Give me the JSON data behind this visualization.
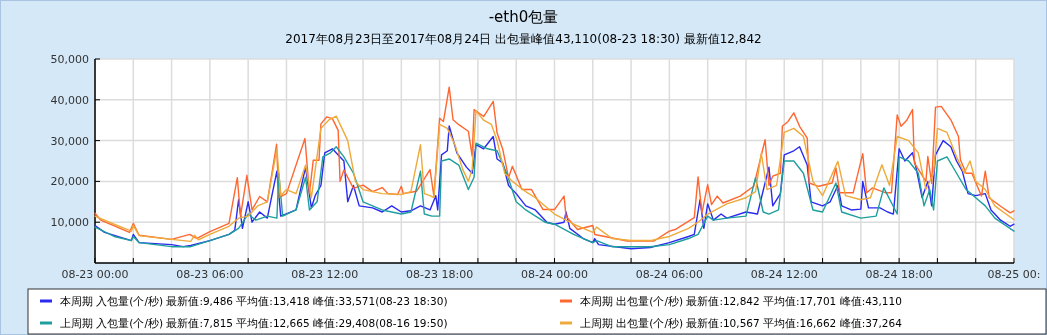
{
  "chart_data": {
    "type": "line",
    "title": "-eth0包量",
    "subtitle": "2017年08月23日至2017年08月24日 出包量峰值43,110(08-23 18:30) 最新值12,842",
    "xlim": [
      "2017-08-23T00:00",
      "2017-08-25T00:00"
    ],
    "xticks": [
      {
        "value": "2017-08-23T00:00",
        "label": "08-23 00:00"
      },
      {
        "value": "2017-08-23T02:00",
        "label": null
      },
      {
        "value": "2017-08-23T04:00",
        "label": null
      },
      {
        "value": "2017-08-23T06:00",
        "label": "08-23 06:00"
      },
      {
        "value": "2017-08-23T08:00",
        "label": null
      },
      {
        "value": "2017-08-23T10:00",
        "label": null
      },
      {
        "value": "2017-08-23T12:00",
        "label": "08-23 12:00"
      },
      {
        "value": "2017-08-23T14:00",
        "label": null
      },
      {
        "value": "2017-08-23T16:00",
        "label": null
      },
      {
        "value": "2017-08-23T18:00",
        "label": "08-23 18:00"
      },
      {
        "value": "2017-08-23T20:00",
        "label": null
      },
      {
        "value": "2017-08-23T22:00",
        "label": null
      },
      {
        "value": "2017-08-24T00:00",
        "label": "08-24 00:00"
      },
      {
        "value": "2017-08-24T02:00",
        "label": null
      },
      {
        "value": "2017-08-24T04:00",
        "label": null
      },
      {
        "value": "2017-08-24T06:00",
        "label": "08-24 06:00"
      },
      {
        "value": "2017-08-24T08:00",
        "label": null
      },
      {
        "value": "2017-08-24T10:00",
        "label": null
      },
      {
        "value": "2017-08-24T12:00",
        "label": "08-24 12:00"
      },
      {
        "value": "2017-08-24T14:00",
        "label": null
      },
      {
        "value": "2017-08-24T16:00",
        "label": null
      },
      {
        "value": "2017-08-24T18:00",
        "label": "08-24 18:00"
      },
      {
        "value": "2017-08-24T20:00",
        "label": null
      },
      {
        "value": "2017-08-24T22:00",
        "label": null
      },
      {
        "value": "2017-08-25T00:00",
        "label": "08-25 00:"
      }
    ],
    "ylim": [
      0,
      50000
    ],
    "yticks": [
      {
        "value": 10000,
        "label": "10,000"
      },
      {
        "value": 20000,
        "label": "20,000"
      },
      {
        "value": 30000,
        "label": "30,000"
      },
      {
        "value": 40000,
        "label": "40,000"
      },
      {
        "value": 50000,
        "label": "50,000"
      }
    ],
    "grid": true,
    "legend": "bottom",
    "series": [
      {
        "name": "本周期 入包量(个/秒) 最新值:9,486  平均值:13,418  峰值:33,571(08-23 18:30)",
        "color": "#2a2af0",
        "x": [
          "2017-08-23T00:00",
          "2017-08-23T00:30",
          "2017-08-23T01:54",
          "2017-08-23T02:00",
          "2017-08-23T02:18",
          "2017-08-23T04:00",
          "2017-08-23T04:36",
          "2017-08-23T05:00",
          "2017-08-23T06:00",
          "2017-08-23T07:00",
          "2017-08-23T07:18",
          "2017-08-23T07:30",
          "2017-08-23T07:42",
          "2017-08-23T08:00",
          "2017-08-23T08:12",
          "2017-08-23T08:36",
          "2017-08-23T09:00",
          "2017-08-23T09:30",
          "2017-08-23T09:42",
          "2017-08-23T10:30",
          "2017-08-23T11:00",
          "2017-08-23T11:18",
          "2017-08-23T11:30",
          "2017-08-23T11:48",
          "2017-08-23T12:00",
          "2017-08-23T12:24",
          "2017-08-23T12:48",
          "2017-08-23T13:00",
          "2017-08-23T13:12",
          "2017-08-23T13:30",
          "2017-08-23T13:48",
          "2017-08-23T14:30",
          "2017-08-23T15:00",
          "2017-08-23T15:30",
          "2017-08-23T16:00",
          "2017-08-23T16:30",
          "2017-08-23T17:00",
          "2017-08-23T17:30",
          "2017-08-23T17:48",
          "2017-08-23T17:54",
          "2017-08-23T18:06",
          "2017-08-23T18:24",
          "2017-08-23T18:30",
          "2017-08-23T18:54",
          "2017-08-23T19:24",
          "2017-08-23T19:42",
          "2017-08-23T19:54",
          "2017-08-23T20:18",
          "2017-08-23T20:48",
          "2017-08-23T21:00",
          "2017-08-23T21:18",
          "2017-08-23T21:36",
          "2017-08-23T22:00",
          "2017-08-23T22:30",
          "2017-08-23T23:00",
          "2017-08-23T23:36",
          "2017-08-24T00:00",
          "2017-08-24T00:30",
          "2017-08-24T00:36",
          "2017-08-24T00:48",
          "2017-08-24T01:30",
          "2017-08-24T02:00",
          "2017-08-24T02:06",
          "2017-08-24T02:18",
          "2017-08-24T04:00",
          "2017-08-24T05:00",
          "2017-08-24T06:00",
          "2017-08-24T07:00",
          "2017-08-24T07:18",
          "2017-08-24T07:36",
          "2017-08-24T07:48",
          "2017-08-24T08:00",
          "2017-08-24T08:18",
          "2017-08-24T08:42",
          "2017-08-24T09:00",
          "2017-08-24T10:00",
          "2017-08-24T10:36",
          "2017-08-24T11:12",
          "2017-08-24T11:24",
          "2017-08-24T11:48",
          "2017-08-24T12:00",
          "2017-08-24T12:30",
          "2017-08-24T12:48",
          "2017-08-24T13:12",
          "2017-08-24T13:24",
          "2017-08-24T14:00",
          "2017-08-24T14:24",
          "2017-08-24T14:48",
          "2017-08-24T15:00",
          "2017-08-24T15:30",
          "2017-08-24T16:00",
          "2017-08-24T16:06",
          "2017-08-24T16:24",
          "2017-08-24T17:00",
          "2017-08-24T17:24",
          "2017-08-24T17:42",
          "2017-08-24T18:00",
          "2017-08-24T18:18",
          "2017-08-24T18:42",
          "2017-08-24T18:54",
          "2017-08-24T19:12",
          "2017-08-24T19:30",
          "2017-08-24T19:42",
          "2017-08-24T19:54",
          "2017-08-24T20:18",
          "2017-08-24T20:42",
          "2017-08-24T21:00",
          "2017-08-24T21:18",
          "2017-08-24T21:36",
          "2017-08-24T22:00",
          "2017-08-24T22:30",
          "2017-08-24T22:48",
          "2017-08-24T23:18",
          "2017-08-24T23:48",
          "2017-08-25T00:00"
        ],
        "values": [
          9200,
          7500,
          5500,
          7000,
          5000,
          4500,
          4000,
          4300,
          5500,
          7000,
          8000,
          15500,
          8500,
          15000,
          10000,
          12500,
          11000,
          22500,
          11500,
          13000,
          23500,
          13500,
          16500,
          19000,
          27000,
          28000,
          26000,
          25000,
          15000,
          19000,
          14000,
          13500,
          12500,
          14000,
          12500,
          12800,
          14000,
          13000,
          16500,
          13000,
          26500,
          27500,
          33600,
          27000,
          23500,
          22000,
          29000,
          28000,
          31000,
          25500,
          24500,
          19000,
          17000,
          14000,
          13000,
          10000,
          9500,
          10000,
          12500,
          8500,
          6000,
          5000,
          6000,
          4500,
          3500,
          3800,
          5000,
          6500,
          7000,
          15500,
          8500,
          14500,
          10500,
          12000,
          11000,
          12500,
          12000,
          23500,
          14000,
          17000,
          26500,
          27500,
          28500,
          24000,
          15000,
          14000,
          15000,
          19000,
          14000,
          13000,
          13200,
          20000,
          13500,
          13500,
          12500,
          12000,
          28000,
          25000,
          27000,
          23000,
          16000,
          20000,
          14000,
          26500,
          30000,
          28500,
          25000,
          22500,
          17000,
          16500,
          17000,
          13000,
          10500,
          9000,
          9500
        ]
      },
      {
        "name": "本周期 出包量(个/秒) 最新值:12,842  平均值:17,701  峰值:43,110",
        "color": "#ff6630",
        "x": [
          "2017-08-23T00:00",
          "2017-08-23T00:18",
          "2017-08-23T01:48",
          "2017-08-23T02:00",
          "2017-08-23T02:18",
          "2017-08-23T04:00",
          "2017-08-23T04:57",
          "2017-08-23T05:18",
          "2017-08-23T06:00",
          "2017-08-23T07:00",
          "2017-08-23T07:26",
          "2017-08-23T07:36",
          "2017-08-23T07:56",
          "2017-08-23T08:12",
          "2017-08-23T08:36",
          "2017-08-23T09:00",
          "2017-08-23T09:29",
          "2017-08-23T09:36",
          "2017-08-23T10:00",
          "2017-08-23T10:58",
          "2017-08-23T11:12",
          "2017-08-23T11:24",
          "2017-08-23T11:42",
          "2017-08-23T11:48",
          "2017-08-23T12:06",
          "2017-08-23T12:24",
          "2017-08-23T12:42",
          "2017-08-23T12:48",
          "2017-08-23T13:00",
          "2017-08-23T13:30",
          "2017-08-23T14:00",
          "2017-08-23T14:30",
          "2017-08-23T15:00",
          "2017-08-23T15:18",
          "2017-08-23T15:48",
          "2017-08-23T16:00",
          "2017-08-23T16:06",
          "2017-08-23T16:48",
          "2017-08-23T17:30",
          "2017-08-23T17:42",
          "2017-08-23T18:00",
          "2017-08-23T18:12",
          "2017-08-23T18:30",
          "2017-08-23T18:42",
          "2017-08-23T19:00",
          "2017-08-23T19:30",
          "2017-08-23T19:42",
          "2017-08-23T19:48",
          "2017-08-23T20:18",
          "2017-08-23T20:48",
          "2017-08-23T21:00",
          "2017-08-23T21:18",
          "2017-08-23T21:36",
          "2017-08-23T21:48",
          "2017-08-23T22:18",
          "2017-08-23T22:48",
          "2017-08-23T23:24",
          "2017-08-24T00:00",
          "2017-08-24T00:30",
          "2017-08-24T00:36",
          "2017-08-24T01:12",
          "2017-08-24T02:00",
          "2017-08-24T02:06",
          "2017-08-24T03:48",
          "2017-08-24T05:12",
          "2017-08-24T06:00",
          "2017-08-24T06:18",
          "2017-08-24T07:18",
          "2017-08-24T07:30",
          "2017-08-24T07:42",
          "2017-08-24T08:00",
          "2017-08-24T08:12",
          "2017-08-24T08:30",
          "2017-08-24T08:48",
          "2017-08-24T09:42",
          "2017-08-24T10:24",
          "2017-08-24T11:00",
          "2017-08-24T11:12",
          "2017-08-24T11:24",
          "2017-08-24T11:48",
          "2017-08-24T11:54",
          "2017-08-24T12:12",
          "2017-08-24T12:30",
          "2017-08-24T12:48",
          "2017-08-24T13:12",
          "2017-08-24T13:18",
          "2017-08-24T13:48",
          "2017-08-24T14:30",
          "2017-08-24T14:42",
          "2017-08-24T14:54",
          "2017-08-24T15:36",
          "2017-08-24T16:06",
          "2017-08-24T16:18",
          "2017-08-24T16:36",
          "2017-08-24T17:18",
          "2017-08-24T17:36",
          "2017-08-24T17:54",
          "2017-08-24T18:06",
          "2017-08-24T18:24",
          "2017-08-24T18:42",
          "2017-08-24T18:48",
          "2017-08-24T19:24",
          "2017-08-24T19:30",
          "2017-08-24T19:42",
          "2017-08-24T19:54",
          "2017-08-24T20:12",
          "2017-08-24T20:42",
          "2017-08-24T21:06",
          "2017-08-24T21:12",
          "2017-08-24T21:30",
          "2017-08-24T21:48",
          "2017-08-24T22:18",
          "2017-08-24T22:30",
          "2017-08-24T22:42",
          "2017-08-24T23:18",
          "2017-08-24T23:48",
          "2017-08-25T00:00"
        ],
        "values": [
          12200,
          10500,
          7500,
          9700,
          6800,
          5800,
          7000,
          6000,
          7700,
          9700,
          20900,
          11500,
          21500,
          13000,
          16300,
          15000,
          29100,
          16000,
          17000,
          30500,
          17000,
          25200,
          25200,
          34100,
          35800,
          35400,
          32500,
          20000,
          22800,
          18300,
          19100,
          17500,
          18500,
          17000,
          16800,
          18800,
          17000,
          17600,
          22900,
          16400,
          35500,
          34700,
          43100,
          35100,
          33900,
          32300,
          26200,
          37600,
          35900,
          39600,
          31900,
          27800,
          20900,
          23700,
          18000,
          18000,
          13100,
          13100,
          16400,
          11500,
          8200,
          9200,
          7000,
          5400,
          5400,
          7800,
          8200,
          11100,
          21100,
          12300,
          19200,
          14300,
          16400,
          14700,
          16400,
          18800,
          30200,
          19000,
          21300,
          22000,
          33500,
          34700,
          36800,
          33500,
          30600,
          19600,
          18800,
          19600,
          23300,
          17200,
          17200,
          26800,
          17200,
          18400,
          17200,
          17200,
          36300,
          33500,
          35000,
          37600,
          24500,
          20000,
          26100,
          19500,
          38200,
          38400,
          35100,
          31000,
          25300,
          22000,
          22000,
          16400,
          22500,
          16000,
          13900,
          12300,
          12800
        ]
      },
      {
        "name": "上周期 入包量(个/秒) 最新值:7,815  平均值:12,665  峰值:29,408(08-16 19:50)",
        "color": "#1f9e9e",
        "x": [
          "2017-08-23T00:00",
          "2017-08-23T01:00",
          "2017-08-23T01:54",
          "2017-08-23T02:00",
          "2017-08-23T02:18",
          "2017-08-23T04:00",
          "2017-08-23T05:00",
          "2017-08-23T06:00",
          "2017-08-23T07:00",
          "2017-08-23T07:30",
          "2017-08-23T08:00",
          "2017-08-23T08:24",
          "2017-08-23T09:00",
          "2017-08-23T09:30",
          "2017-08-23T09:36",
          "2017-08-23T09:48",
          "2017-08-23T10:30",
          "2017-08-23T11:00",
          "2017-08-23T11:12",
          "2017-08-23T11:36",
          "2017-08-23T11:54",
          "2017-08-23T12:18",
          "2017-08-23T12:36",
          "2017-08-23T13:00",
          "2017-08-23T13:30",
          "2017-08-23T14:00",
          "2017-08-23T15:00",
          "2017-08-23T16:00",
          "2017-08-23T16:30",
          "2017-08-23T17:00",
          "2017-08-23T17:12",
          "2017-08-23T17:36",
          "2017-08-23T18:00",
          "2017-08-23T18:06",
          "2017-08-23T18:30",
          "2017-08-23T19:00",
          "2017-08-23T19:30",
          "2017-08-23T19:48",
          "2017-08-23T19:54",
          "2017-08-23T20:30",
          "2017-08-23T21:00",
          "2017-08-23T21:30",
          "2017-08-23T22:00",
          "2017-08-23T22:30",
          "2017-08-23T23:30",
          "2017-08-24T00:00",
          "2017-08-24T01:00",
          "2017-08-24T02:00",
          "2017-08-24T02:12",
          "2017-08-24T03:00",
          "2017-08-24T04:00",
          "2017-08-24T05:00",
          "2017-08-24T06:00",
          "2017-08-24T07:00",
          "2017-08-24T07:30",
          "2017-08-24T08:00",
          "2017-08-24T08:18",
          "2017-08-24T09:00",
          "2017-08-24T10:00",
          "2017-08-24T10:30",
          "2017-08-24T10:54",
          "2017-08-24T11:12",
          "2017-08-24T11:42",
          "2017-08-24T12:00",
          "2017-08-24T12:30",
          "2017-08-24T13:00",
          "2017-08-24T13:30",
          "2017-08-24T14:00",
          "2017-08-24T14:42",
          "2017-08-24T15:00",
          "2017-08-24T16:00",
          "2017-08-24T16:48",
          "2017-08-24T17:12",
          "2017-08-24T17:54",
          "2017-08-24T18:00",
          "2017-08-24T18:30",
          "2017-08-24T19:00",
          "2017-08-24T19:18",
          "2017-08-24T19:36",
          "2017-08-24T19:48",
          "2017-08-24T20:00",
          "2017-08-24T20:30",
          "2017-08-24T21:00",
          "2017-08-24T21:30",
          "2017-08-24T22:00",
          "2017-08-24T22:30",
          "2017-08-24T23:00",
          "2017-08-25T00:00"
        ],
        "values": [
          8800,
          6500,
          5500,
          6500,
          5000,
          4000,
          4000,
          5500,
          7000,
          8500,
          12000,
          10500,
          11500,
          11000,
          22000,
          11500,
          13000,
          21000,
          13000,
          15000,
          26000,
          27000,
          28500,
          26000,
          22000,
          15000,
          13000,
          12000,
          12500,
          22500,
          12000,
          11500,
          11500,
          25000,
          25500,
          24000,
          18000,
          21000,
          29400,
          28000,
          27500,
          22000,
          15000,
          13000,
          10000,
          9500,
          7000,
          5000,
          5500,
          4000,
          4000,
          4000,
          4500,
          6000,
          7000,
          11500,
          10500,
          11000,
          11500,
          20900,
          12500,
          12000,
          13000,
          25000,
          25000,
          22000,
          13000,
          12500,
          19600,
          12500,
          11000,
          11500,
          18400,
          12000,
          26000,
          25000,
          22000,
          14000,
          18000,
          13000,
          25000,
          26000,
          22000,
          18000,
          16000,
          14000,
          11000,
          7800
        ]
      },
      {
        "name": "上周期 出包量(个/秒) 最新值:10,567  平均值:16,662  峰值:37,264",
        "color": "#eeaa3a",
        "x": [
          "2017-08-23T00:00",
          "2017-08-23T01:00",
          "2017-08-23T01:54",
          "2017-08-23T02:00",
          "2017-08-23T02:18",
          "2017-08-23T04:00",
          "2017-08-23T05:00",
          "2017-08-23T05:12",
          "2017-08-23T05:24",
          "2017-08-23T06:00",
          "2017-08-23T07:00",
          "2017-08-23T07:30",
          "2017-08-23T08:00",
          "2017-08-23T08:30",
          "2017-08-23T09:00",
          "2017-08-23T09:30",
          "2017-08-23T09:42",
          "2017-08-23T10:00",
          "2017-08-23T10:30",
          "2017-08-23T11:00",
          "2017-08-23T11:18",
          "2017-08-23T11:48",
          "2017-08-23T12:12",
          "2017-08-23T12:36",
          "2017-08-23T13:12",
          "2017-08-23T13:36",
          "2017-08-23T14:00",
          "2017-08-23T15:00",
          "2017-08-23T16:00",
          "2017-08-23T16:30",
          "2017-08-23T17:00",
          "2017-08-23T17:12",
          "2017-08-23T17:30",
          "2017-08-23T17:42",
          "2017-08-23T18:00",
          "2017-08-23T18:24",
          "2017-08-23T18:48",
          "2017-08-23T19:12",
          "2017-08-23T19:30",
          "2017-08-23T19:42",
          "2017-08-23T19:54",
          "2017-08-23T20:18",
          "2017-08-23T20:42",
          "2017-08-23T21:00",
          "2017-08-23T21:24",
          "2017-08-23T21:48",
          "2017-08-23T22:30",
          "2017-08-23T23:00",
          "2017-08-24T00:00",
          "2017-08-24T01:00",
          "2017-08-24T02:00",
          "2017-08-24T02:12",
          "2017-08-24T03:00",
          "2017-08-24T04:00",
          "2017-08-24T05:00",
          "2017-08-24T06:00",
          "2017-08-24T07:00",
          "2017-08-24T07:30",
          "2017-08-24T08:00",
          "2017-08-24T09:00",
          "2017-08-24T10:00",
          "2017-08-24T10:30",
          "2017-08-24T10:48",
          "2017-08-24T11:06",
          "2017-08-24T11:36",
          "2017-08-24T12:00",
          "2017-08-24T12:30",
          "2017-08-24T13:00",
          "2017-08-24T13:30",
          "2017-08-24T14:00",
          "2017-08-24T14:48",
          "2017-08-24T15:12",
          "2017-08-24T16:00",
          "2017-08-24T16:30",
          "2017-08-24T17:06",
          "2017-08-24T17:30",
          "2017-08-24T17:54",
          "2017-08-24T18:30",
          "2017-08-24T19:00",
          "2017-08-24T19:24",
          "2017-08-24T19:48",
          "2017-08-24T20:00",
          "2017-08-24T20:30",
          "2017-08-24T21:00",
          "2017-08-24T21:24",
          "2017-08-24T21:42",
          "2017-08-24T22:00",
          "2017-08-24T22:30",
          "2017-08-24T23:00",
          "2017-08-25T00:00"
        ],
        "values": [
          11500,
          9500,
          7800,
          9200,
          6700,
          5800,
          5300,
          6800,
          5700,
          7000,
          9000,
          11000,
          11500,
          14000,
          15000,
          28000,
          16500,
          18000,
          17000,
          24000,
          16000,
          33000,
          35000,
          36000,
          30000,
          20000,
          18000,
          17000,
          16800,
          17500,
          29000,
          17000,
          16500,
          16000,
          34000,
          33000,
          29000,
          23000,
          20000,
          23000,
          37300,
          35000,
          34000,
          30000,
          22000,
          20000,
          17500,
          16000,
          12000,
          9500,
          7500,
          8800,
          6000,
          5500,
          5500,
          6500,
          8500,
          10000,
          12000,
          14500,
          16000,
          17500,
          26900,
          18000,
          19000,
          32000,
          33000,
          31000,
          20000,
          16500,
          24900,
          16500,
          15500,
          16000,
          24100,
          19000,
          31000,
          30000,
          27000,
          18000,
          22000,
          33000,
          32000,
          26000,
          22000,
          25000,
          20000,
          18000,
          14000,
          10600
        ]
      }
    ]
  }
}
